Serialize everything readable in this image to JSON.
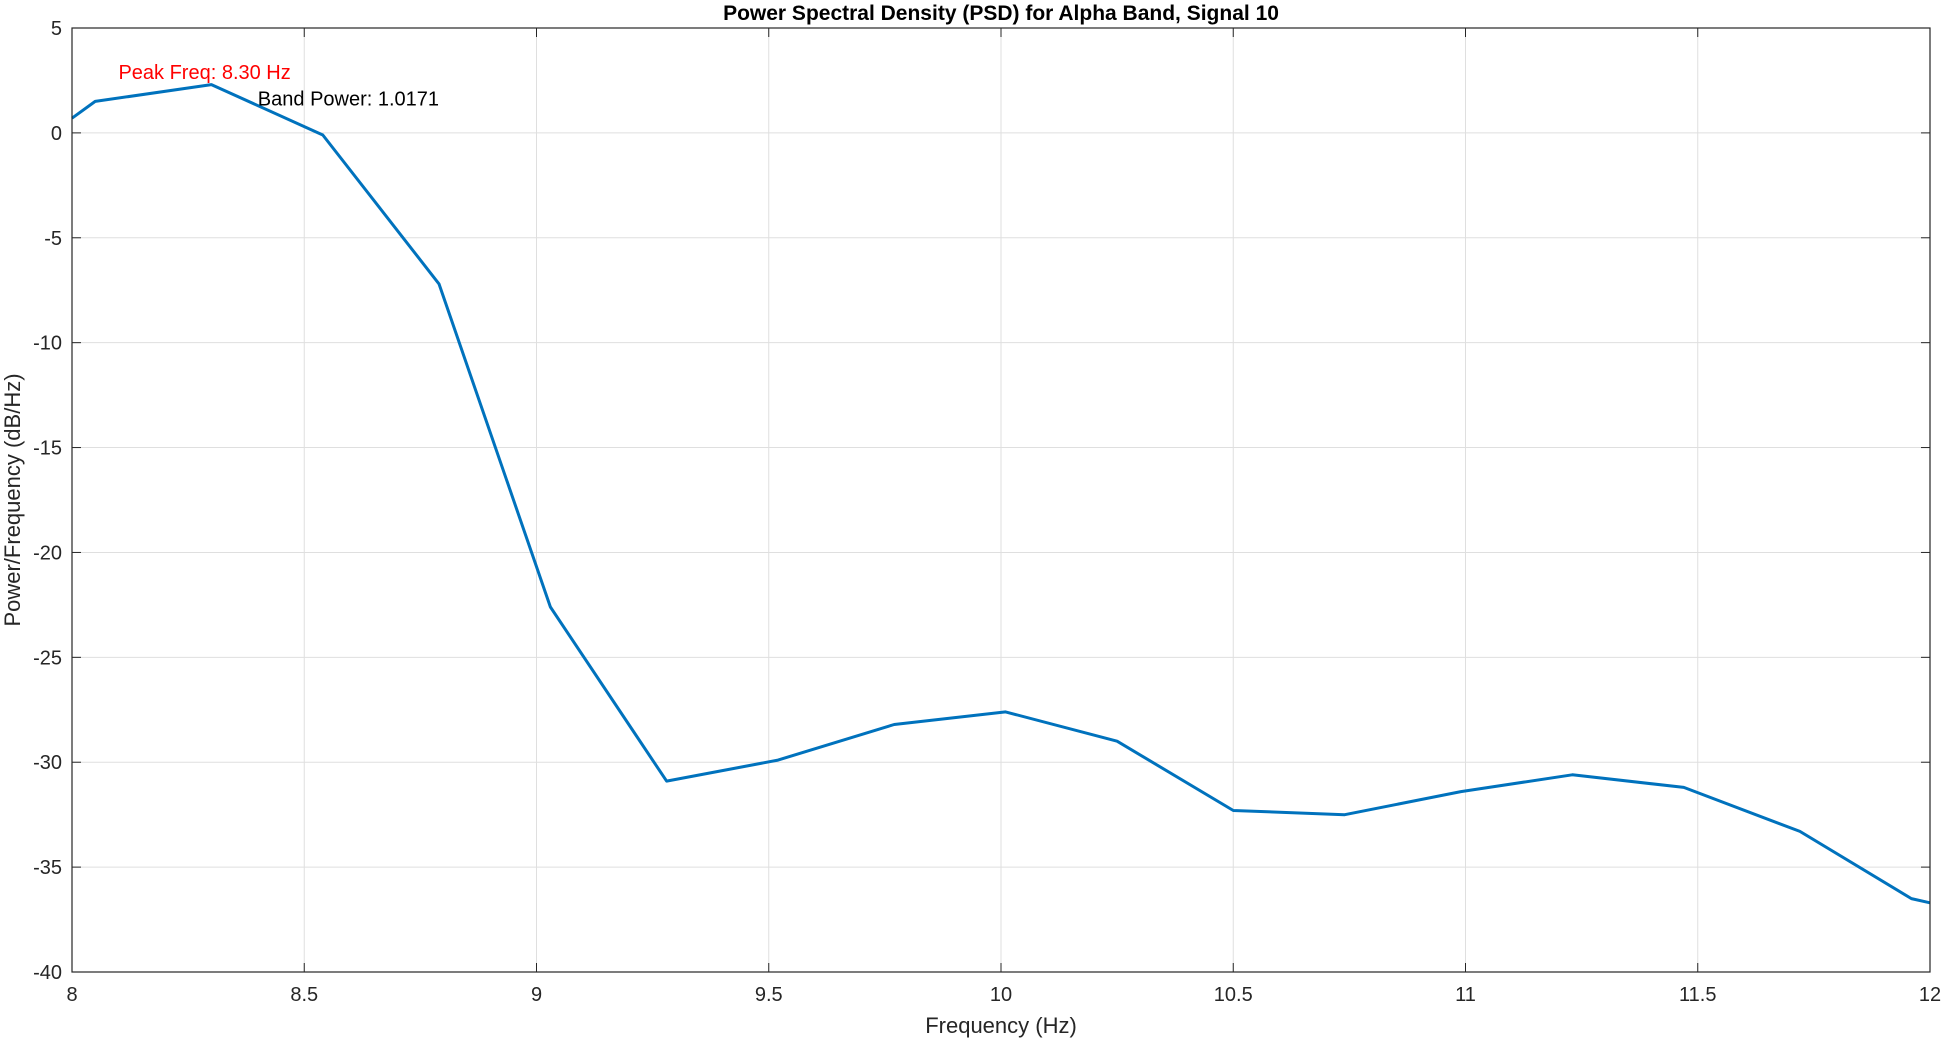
{
  "chart_data": {
    "type": "line",
    "title": "Power Spectral Density (PSD) for Alpha Band, Signal 10",
    "xlabel": "Frequency (Hz)",
    "ylabel": "Power/Frequency (dB/Hz)",
    "xlim": [
      8,
      12
    ],
    "ylim": [
      -40,
      5
    ],
    "xticks": [
      8,
      8.5,
      9,
      9.5,
      10,
      10.5,
      11,
      11.5,
      12
    ],
    "xtick_labels": [
      "8",
      "8.5",
      "9",
      "9.5",
      "10",
      "10.5",
      "11",
      "11.5",
      "12"
    ],
    "yticks": [
      5,
      0,
      -5,
      -10,
      -15,
      -20,
      -25,
      -30,
      -35,
      -40
    ],
    "ytick_labels": [
      "5",
      "0",
      "-5",
      "-10",
      "-15",
      "-20",
      "-25",
      "-30",
      "-35",
      "-40"
    ],
    "grid": true,
    "series": [
      {
        "color": "#0072BD",
        "x": [
          8.0,
          8.05,
          8.3,
          8.54,
          8.79,
          9.03,
          9.28,
          9.52,
          9.77,
          10.01,
          10.25,
          10.5,
          10.74,
          10.99,
          11.23,
          11.47,
          11.72,
          11.96,
          12.0
        ],
        "y": [
          0.7,
          1.5,
          2.3,
          -0.1,
          -7.2,
          -22.6,
          -30.9,
          -29.9,
          -28.2,
          -27.6,
          -29.0,
          -32.3,
          -32.5,
          -31.4,
          -30.6,
          -31.2,
          -33.3,
          -36.5,
          -36.7
        ]
      }
    ],
    "annotations": [
      {
        "text": "Peak Freq: 8.30 Hz",
        "x": 8.1,
        "y": 2.9,
        "color": "#ff0000"
      },
      {
        "text": "Band Power: 1.0171",
        "x": 8.4,
        "y": 1.65,
        "color": "#000000"
      }
    ]
  }
}
